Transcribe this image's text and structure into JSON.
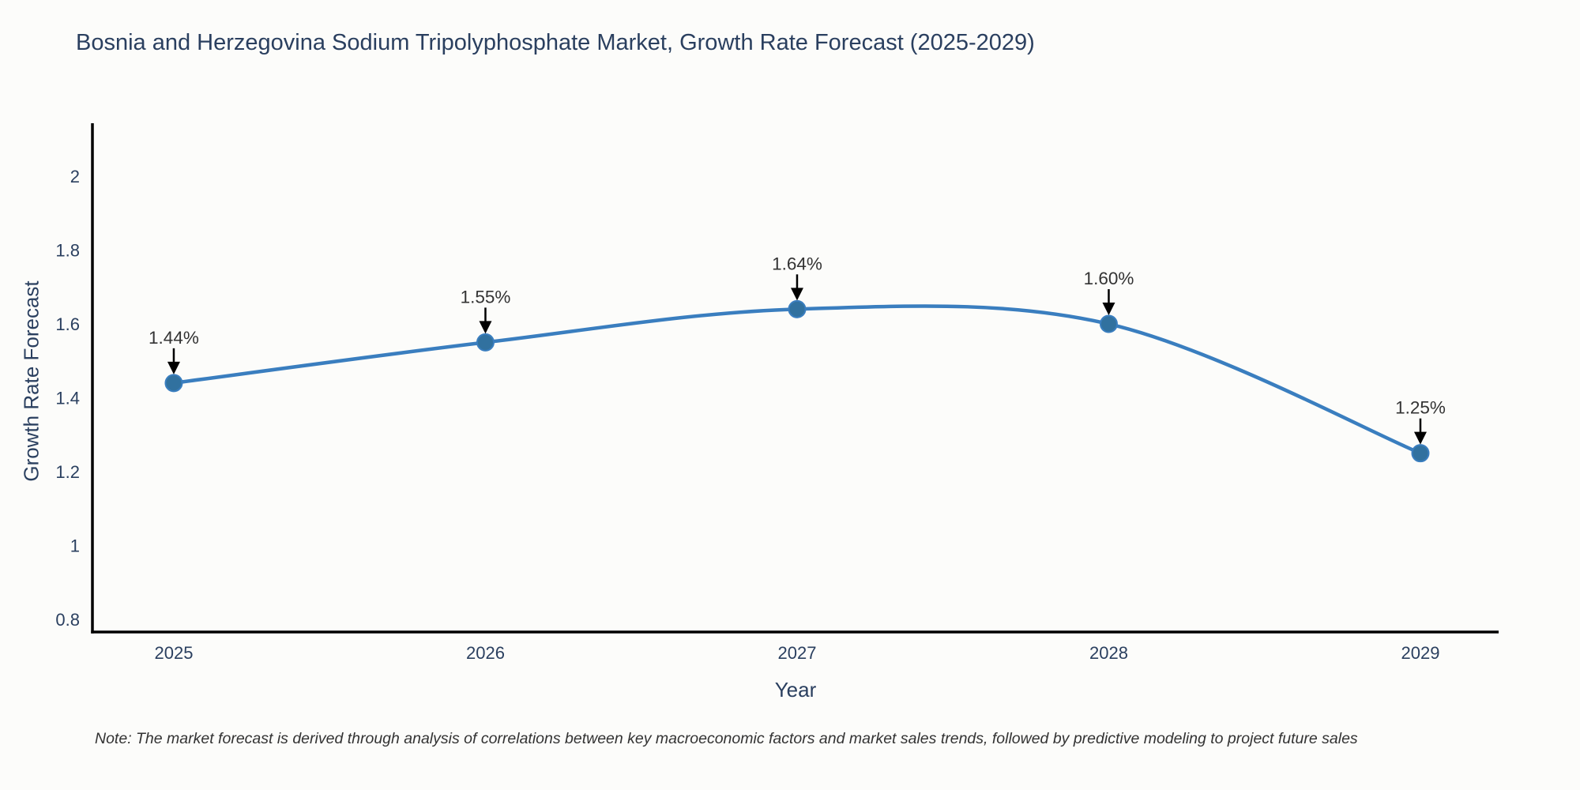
{
  "note": "Note: The market forecast is derived through analysis of correlations between key macroeconomic factors and market sales trends, followed by predictive modeling to project future sales",
  "colors": {
    "line": "#3a7ebf",
    "marker": "#31719f",
    "axis": "#000000",
    "tick_text": "#2a3f5f",
    "annotation_text": "#333333",
    "arrow": "#000000",
    "title_text": "#2a3f5f"
  },
  "chart_data": {
    "type": "line",
    "title": "Bosnia and Herzegovina Sodium Tripolyphosphate Market, Growth Rate Forecast (2025-2029)",
    "xlabel": "Year",
    "ylabel": "Growth Rate Forecast",
    "x": [
      2025,
      2026,
      2027,
      2028,
      2029
    ],
    "values": [
      1.44,
      1.55,
      1.64,
      1.6,
      1.25
    ],
    "series": [
      {
        "name": "Growth Rate Forecast",
        "values": [
          1.44,
          1.55,
          1.64,
          1.6,
          1.25
        ]
      }
    ],
    "point_labels": [
      "1.44%",
      "1.55%",
      "1.64%",
      "1.60%",
      "1.25%"
    ],
    "x_tick_labels": [
      "2025",
      "2026",
      "2027",
      "2028",
      "2029"
    ],
    "y_ticks": [
      0.8,
      1,
      1.2,
      1.4,
      1.6,
      1.8,
      2
    ],
    "y_tick_labels": [
      "0.8",
      "1",
      "1.2",
      "1.4",
      "1.6",
      "1.8",
      "2"
    ],
    "xlim": [
      2024.739,
      2029.251
    ],
    "ylim": [
      0.766,
      2.139
    ],
    "grid": false,
    "legend": "none",
    "line_shape": "spline"
  }
}
